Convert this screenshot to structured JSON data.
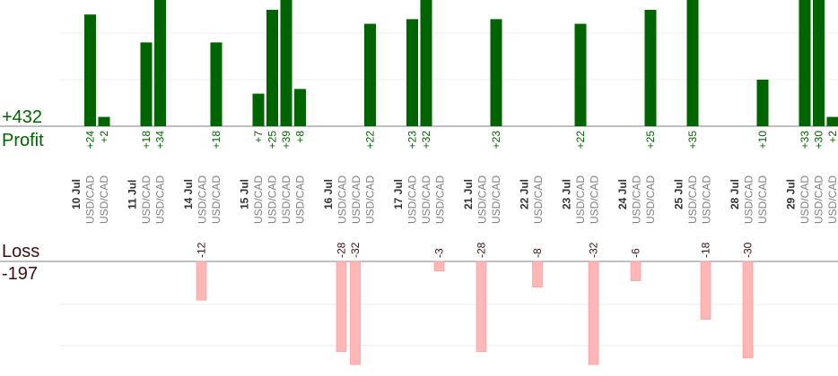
{
  "chart_data": {
    "type": "bar",
    "profit": {
      "label": "Profit",
      "total": "+432",
      "color": "#006400",
      "values": [
        24,
        2,
        18,
        34,
        18,
        7,
        25,
        39,
        8,
        22,
        23,
        32,
        23,
        22,
        25,
        35,
        10,
        33,
        30,
        2
      ]
    },
    "loss": {
      "label": "Loss",
      "total": "-197",
      "color": "#ffb6b6",
      "values": [
        -12,
        -28,
        -32,
        -3,
        -28,
        -8,
        -32,
        -6,
        -18,
        -30
      ]
    },
    "dates": [
      "10 Jul",
      "11 Jul",
      "14 Jul",
      "15 Jul",
      "16 Jul",
      "17 Jul",
      "21 Jul",
      "22 Jul",
      "23 Jul",
      "24 Jul",
      "25 Jul",
      "28 Jul",
      "29 Jul"
    ],
    "instrument": "USD/CAD",
    "columns": [
      {
        "date": "10 Jul",
        "trades": [
          24,
          2
        ]
      },
      {
        "date": "11 Jul",
        "trades": [
          18,
          34
        ]
      },
      {
        "date": "14 Jul",
        "trades": [
          -12,
          18
        ]
      },
      {
        "date": "15 Jul",
        "trades": [
          7,
          25,
          39,
          8
        ]
      },
      {
        "date": "16 Jul",
        "trades": [
          -28,
          -32,
          22
        ]
      },
      {
        "date": "17 Jul",
        "trades": [
          23,
          32,
          -3
        ]
      },
      {
        "date": "21 Jul",
        "trades": [
          -28,
          23
        ]
      },
      {
        "date": "22 Jul",
        "trades": [
          -8
        ]
      },
      {
        "date": "23 Jul",
        "trades": [
          22,
          -32
        ]
      },
      {
        "date": "24 Jul",
        "trades": [
          -6,
          25
        ]
      },
      {
        "date": "25 Jul",
        "trades": [
          35,
          -18
        ]
      },
      {
        "date": "28 Jul",
        "trades": [
          -30,
          10
        ]
      },
      {
        "date": "29 Jul",
        "trades": [
          33,
          30,
          2
        ]
      }
    ],
    "grid": true
  }
}
